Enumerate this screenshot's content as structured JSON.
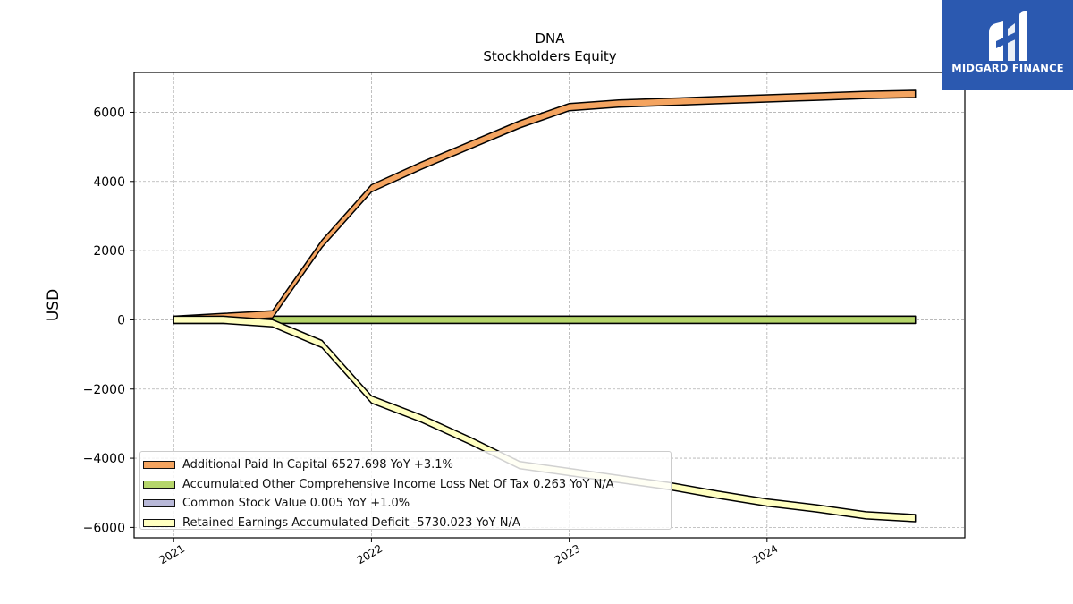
{
  "chart_data": {
    "type": "area",
    "title": "DNA",
    "subtitle": "Stockholders  Equity",
    "xlabel": "",
    "ylabel": "USD",
    "xlim": [
      2020.8,
      2025.0
    ],
    "ylim": [
      -6300,
      7150
    ],
    "xticks": [
      {
        "value": 2021,
        "label": "2021"
      },
      {
        "value": 2022,
        "label": "2022"
      },
      {
        "value": 2023,
        "label": "2023"
      },
      {
        "value": 2024,
        "label": "2024"
      }
    ],
    "yticks": [
      {
        "value": 6000,
        "label": "6000"
      },
      {
        "value": 4000,
        "label": "4000"
      },
      {
        "value": 2000,
        "label": "2000"
      },
      {
        "value": 0,
        "label": "0"
      },
      {
        "value": -2000,
        "label": "−2000"
      },
      {
        "value": -4000,
        "label": "−4000"
      },
      {
        "value": -6000,
        "label": "−6000"
      }
    ],
    "grid": true,
    "legend_position": "lower-left",
    "series": [
      {
        "name": "Additional Paid In Capital",
        "legend_label": "Additional Paid In Capital  6527.698 YoY +3.1%",
        "color": "#f4a460",
        "x": [
          2021.0,
          2021.25,
          2021.5,
          2021.75,
          2022.0,
          2022.25,
          2022.5,
          2022.75,
          2023.0,
          2023.25,
          2023.5,
          2023.75,
          2024.0,
          2024.25,
          2024.5,
          2024.75
        ],
        "values": [
          0,
          80,
          160,
          2200,
          3800,
          4450,
          5050,
          5650,
          6150,
          6250,
          6300,
          6350,
          6400,
          6450,
          6500,
          6528
        ]
      },
      {
        "name": "Accumulated Other Comprehensive Income Loss Net Of Tax",
        "legend_label": "Accumulated Other Comprehensive Income Loss Net Of Tax  0.263 YoY N/A",
        "color": "#b5d56a",
        "x": [
          2021.0,
          2021.25,
          2021.5,
          2021.75,
          2022.0,
          2022.25,
          2022.5,
          2022.75,
          2023.0,
          2023.25,
          2023.5,
          2023.75,
          2024.0,
          2024.25,
          2024.5,
          2024.75
        ],
        "values": [
          0,
          0,
          0,
          0,
          0,
          0,
          0,
          0,
          0,
          0,
          0,
          0,
          0,
          0,
          0,
          0.263
        ]
      },
      {
        "name": "Common Stock Value",
        "legend_label": "Common Stock Value  0.005 YoY +1.0%",
        "color": "#b8b8d8",
        "x": [
          2021.0,
          2021.25,
          2021.5,
          2021.75,
          2022.0,
          2022.25,
          2022.5,
          2022.75,
          2023.0,
          2023.25,
          2023.5,
          2023.75,
          2024.0,
          2024.25,
          2024.5,
          2024.75
        ],
        "values": [
          0.005,
          0.005,
          0.005,
          0.005,
          0.005,
          0.005,
          0.005,
          0.005,
          0.005,
          0.005,
          0.005,
          0.005,
          0.005,
          0.005,
          0.005,
          0.005
        ]
      },
      {
        "name": "Retained Earnings Accumulated Deficit",
        "legend_label": "Retained Earnings Accumulated Deficit  -5730.023 YoY N/A",
        "color": "#ffffc0",
        "x": [
          2021.0,
          2021.25,
          2021.5,
          2021.75,
          2022.0,
          2022.25,
          2022.5,
          2022.75,
          2023.0,
          2023.25,
          2023.5,
          2023.75,
          2024.0,
          2024.25,
          2024.5,
          2024.75
        ],
        "values": [
          0,
          0,
          -100,
          -700,
          -2300,
          -2850,
          -3500,
          -4200,
          -4400,
          -4600,
          -4800,
          -5050,
          -5280,
          -5450,
          -5650,
          -5730
        ]
      }
    ]
  },
  "watermark": {
    "text": "MIDGARD FINANCE",
    "color": "#2b59b0"
  }
}
